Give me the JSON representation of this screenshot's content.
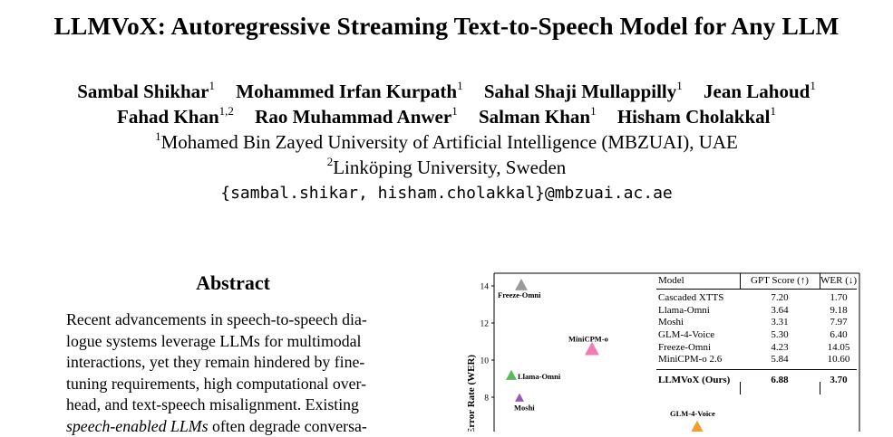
{
  "paper": {
    "title": "LLMVoX: Autoregressive Streaming Text-to-Speech Model for Any LLM",
    "authors_line1": [
      {
        "name": "Sambal Shikhar",
        "aff": "1"
      },
      {
        "name": "Mohammed Irfan Kurpath",
        "aff": "1"
      },
      {
        "name": "Sahal Shaji Mullappilly",
        "aff": "1"
      },
      {
        "name": "Jean Lahoud",
        "aff": "1"
      }
    ],
    "authors_line2": [
      {
        "name": "Fahad Khan",
        "aff": "1,2"
      },
      {
        "name": "Rao Muhammad Anwer",
        "aff": "1"
      },
      {
        "name": "Salman Khan",
        "aff": "1"
      },
      {
        "name": "Hisham Cholakkal",
        "aff": "1"
      }
    ],
    "affiliations": [
      {
        "mark": "1",
        "text": "Mohamed Bin Zayed University of Artificial Intelligence (MBZUAI), UAE"
      },
      {
        "mark": "2",
        "text": "Linköping University, Sweden"
      }
    ],
    "email": "{sambal.shikar, hisham.cholakkal}@mbzuai.ac.ae"
  },
  "abstract": {
    "heading": "Abstract",
    "lines": [
      "Recent advancements in speech-to-speech dia-",
      "logue systems leverage LLMs for multimodal",
      "interactions, yet they remain hindered by fine-",
      "tuning requirements, high computational over-",
      "head, and text-speech misalignment. Existing"
    ],
    "line6_italic": "speech-enabled LLMs",
    "line6_rest": " often degrade conversa-"
  },
  "chart_data": {
    "type": "scatter",
    "ylabel": "Error Rate (WER)",
    "y_ticks": [
      8,
      10,
      12,
      14
    ],
    "points": [
      {
        "label": "Freeze-Omni",
        "y": 14.05,
        "color": "#9a9a9a"
      },
      {
        "label": "MiniCPM-o",
        "y": 10.6,
        "color": "#f07cb6"
      },
      {
        "label": "Llama-Omni",
        "y": 9.18,
        "color": "#5cb85c"
      },
      {
        "label": "Moshi",
        "y": 7.97,
        "color": "#9b59b6"
      },
      {
        "label": "GLM-4-Voice",
        "y": 6.4,
        "color": "#f39c32"
      }
    ],
    "table": {
      "headers": [
        "Model",
        "GPT Score (↑)",
        "WER (↓)"
      ],
      "rows": [
        [
          "Cascaded XTTS",
          "7.20",
          "1.70"
        ],
        [
          "Llama-Omni",
          "3.64",
          "9.18"
        ],
        [
          "Moshi",
          "3.31",
          "7.97"
        ],
        [
          "GLM-4-Voice",
          "5.30",
          "6.40"
        ],
        [
          "Freeze-Omni",
          "4.23",
          "14.05"
        ],
        [
          "MiniCPM-o 2.6",
          "5.84",
          "10.60"
        ]
      ],
      "final_row": [
        "LLMVoX (Ours)",
        "6.88",
        "3.70"
      ]
    }
  }
}
